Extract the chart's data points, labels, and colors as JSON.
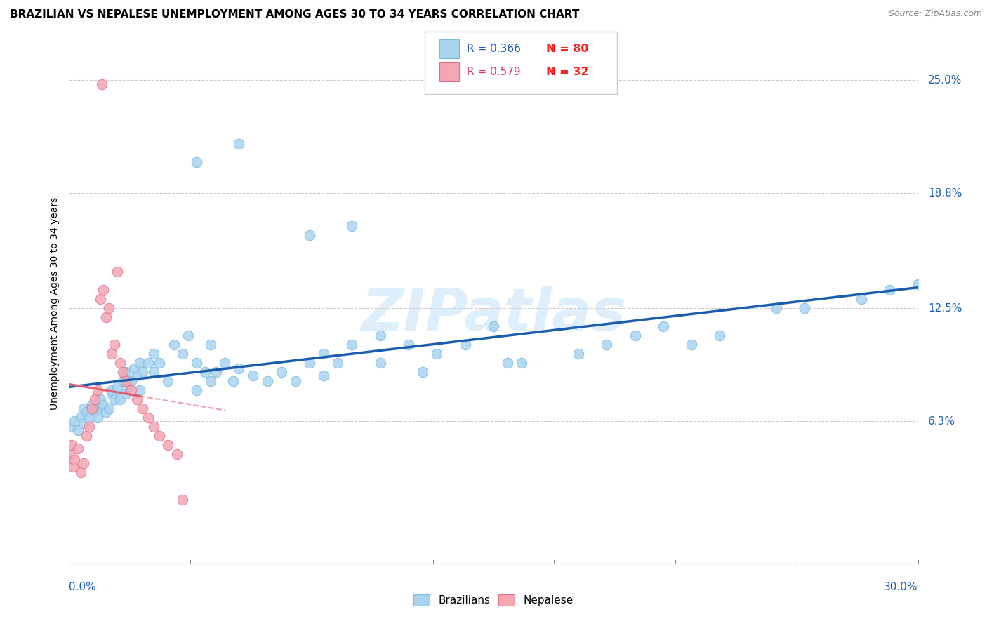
{
  "title": "BRAZILIAN VS NEPALESE UNEMPLOYMENT AMONG AGES 30 TO 34 YEARS CORRELATION CHART",
  "source": "Source: ZipAtlas.com",
  "ylabel": "Unemployment Among Ages 30 to 34 years",
  "ytick_labels": [
    "6.3%",
    "12.5%",
    "18.8%",
    "25.0%"
  ],
  "ytick_values": [
    6.3,
    12.5,
    18.8,
    25.0
  ],
  "xlim": [
    0,
    30
  ],
  "ylim": [
    -1.5,
    27
  ],
  "watermark": "ZIPatlas",
  "blue_color": "#A8D4F0",
  "blue_edge_color": "#7AB8E0",
  "pink_color": "#F4A6B2",
  "pink_edge_color": "#E07090",
  "blue_line_color": "#1A5DAD",
  "pink_line_color": "#E06070",
  "legend_r_blue_color": "#1A5DAD",
  "legend_n_blue_color": "#FF2020",
  "legend_r_pink_color": "#D04060",
  "legend_n_pink_color": "#FF2020",
  "grid_color": "#cccccc",
  "axis_color": "#aaaaaa",
  "title_fontsize": 11,
  "source_fontsize": 9,
  "label_fontsize": 11,
  "ylabel_fontsize": 10
}
